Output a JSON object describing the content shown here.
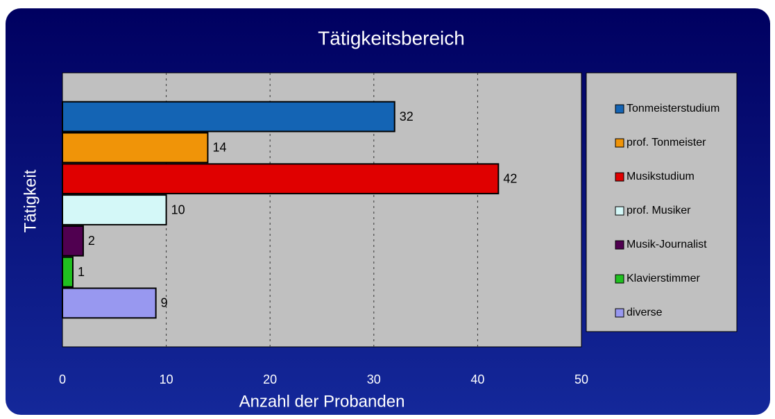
{
  "chart_data": {
    "type": "bar",
    "orientation": "horizontal",
    "title": "Tätigkeitsbereich",
    "x_label": "Anzahl der Probanden",
    "y_label": "Tätigkeit",
    "series": [
      {
        "name": "Tonmeisterstudium",
        "color": "#1464b4",
        "values": [
          32
        ]
      },
      {
        "name": "prof. Tonmeister",
        "color": "#f09408",
        "values": [
          14
        ]
      },
      {
        "name": "Musikstudium",
        "color": "#e00000",
        "values": [
          42
        ]
      },
      {
        "name": "prof. Musiker",
        "color": "#d4f8f8",
        "values": [
          10
        ]
      },
      {
        "name": "Musik-Journalist",
        "color": "#500050",
        "values": [
          2
        ]
      },
      {
        "name": "Klavierstimmer",
        "color": "#20c020",
        "values": [
          1
        ]
      },
      {
        "name": "diverse",
        "color": "#9898f0",
        "values": [
          9
        ]
      }
    ],
    "xlim": [
      0,
      50
    ],
    "xticks": [
      0,
      10,
      20,
      30,
      40,
      50
    ],
    "grid": true,
    "legend": "right"
  }
}
